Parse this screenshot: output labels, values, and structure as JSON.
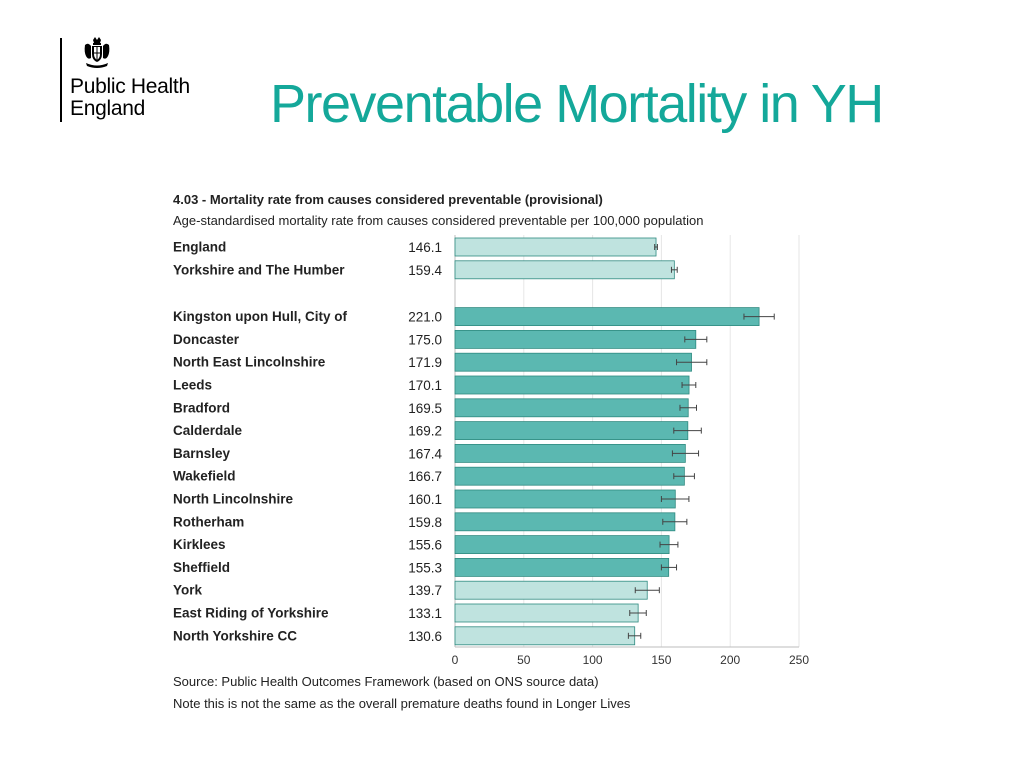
{
  "logo": {
    "line1": "Public Health",
    "line2": "England",
    "crest_icon": "royal-coat-of-arms-icon"
  },
  "page_title": "Preventable Mortality in YH",
  "chart_data": {
    "type": "bar",
    "orientation": "horizontal",
    "title": "4.03 - Mortality rate from causes considered preventable (provisional)",
    "subtitle": "Age-standardised mortality rate from causes considered preventable per 100,000 population",
    "xlim": [
      0,
      250
    ],
    "xticks": [
      0,
      50,
      100,
      150,
      200,
      250
    ],
    "grid": true,
    "groups": [
      {
        "rows": [
          {
            "label": "England",
            "value": 146.1,
            "display": "146.1",
            "ci": [
              145.1,
              147.1
            ],
            "shade": "light"
          },
          {
            "label": "Yorkshire and The Humber",
            "value": 159.4,
            "display": "159.4",
            "ci": [
              157.3,
              161.5
            ],
            "shade": "light"
          }
        ]
      },
      {
        "rows": [
          {
            "label": "Kingston upon Hull, City of",
            "value": 221.0,
            "display": "221.0",
            "ci": [
              210.0,
              232.0
            ],
            "shade": "dark"
          },
          {
            "label": "Doncaster",
            "value": 175.0,
            "display": "175.0",
            "ci": [
              167.0,
              183.0
            ],
            "shade": "dark"
          },
          {
            "label": "North East Lincolnshire",
            "value": 171.9,
            "display": "171.9",
            "ci": [
              161.0,
              183.0
            ],
            "shade": "dark"
          },
          {
            "label": "Leeds",
            "value": 170.1,
            "display": "170.1",
            "ci": [
              165.0,
              175.0
            ],
            "shade": "dark"
          },
          {
            "label": "Bradford",
            "value": 169.5,
            "display": "169.5",
            "ci": [
              163.5,
              175.5
            ],
            "shade": "dark"
          },
          {
            "label": "Calderdale",
            "value": 169.2,
            "display": "169.2",
            "ci": [
              159.0,
              179.0
            ],
            "shade": "dark"
          },
          {
            "label": "Barnsley",
            "value": 167.4,
            "display": "167.4",
            "ci": [
              158.0,
              177.0
            ],
            "shade": "dark"
          },
          {
            "label": "Wakefield",
            "value": 166.7,
            "display": "166.7",
            "ci": [
              159.0,
              174.0
            ],
            "shade": "dark"
          },
          {
            "label": "North Lincolnshire",
            "value": 160.1,
            "display": "160.1",
            "ci": [
              150.0,
              170.0
            ],
            "shade": "dark"
          },
          {
            "label": "Rotherham",
            "value": 159.8,
            "display": "159.8",
            "ci": [
              151.0,
              168.5
            ],
            "shade": "dark"
          },
          {
            "label": "Kirklees",
            "value": 155.6,
            "display": "155.6",
            "ci": [
              149.0,
              162.0
            ],
            "shade": "dark"
          },
          {
            "label": "Sheffield",
            "value": 155.3,
            "display": "155.3",
            "ci": [
              150.0,
              161.0
            ],
            "shade": "dark"
          },
          {
            "label": "York",
            "value": 139.7,
            "display": "139.7",
            "ci": [
              131.0,
              148.5
            ],
            "shade": "light"
          },
          {
            "label": "East Riding of Yorkshire",
            "value": 133.1,
            "display": "133.1",
            "ci": [
              127.0,
              139.0
            ],
            "shade": "light"
          },
          {
            "label": "North Yorkshire CC",
            "value": 130.6,
            "display": "130.6",
            "ci": [
              126.0,
              135.0
            ],
            "shade": "light"
          }
        ]
      }
    ],
    "colors": {
      "dark": "#5bb8b1",
      "light": "#bfe3df",
      "outline": "#2f8a80",
      "title": "#14a89a"
    }
  },
  "notes": {
    "source": "Source: Public Health Outcomes Framework (based on ONS source data)",
    "extra": "Note this is not the same as the overall premature deaths found in Longer Lives"
  }
}
